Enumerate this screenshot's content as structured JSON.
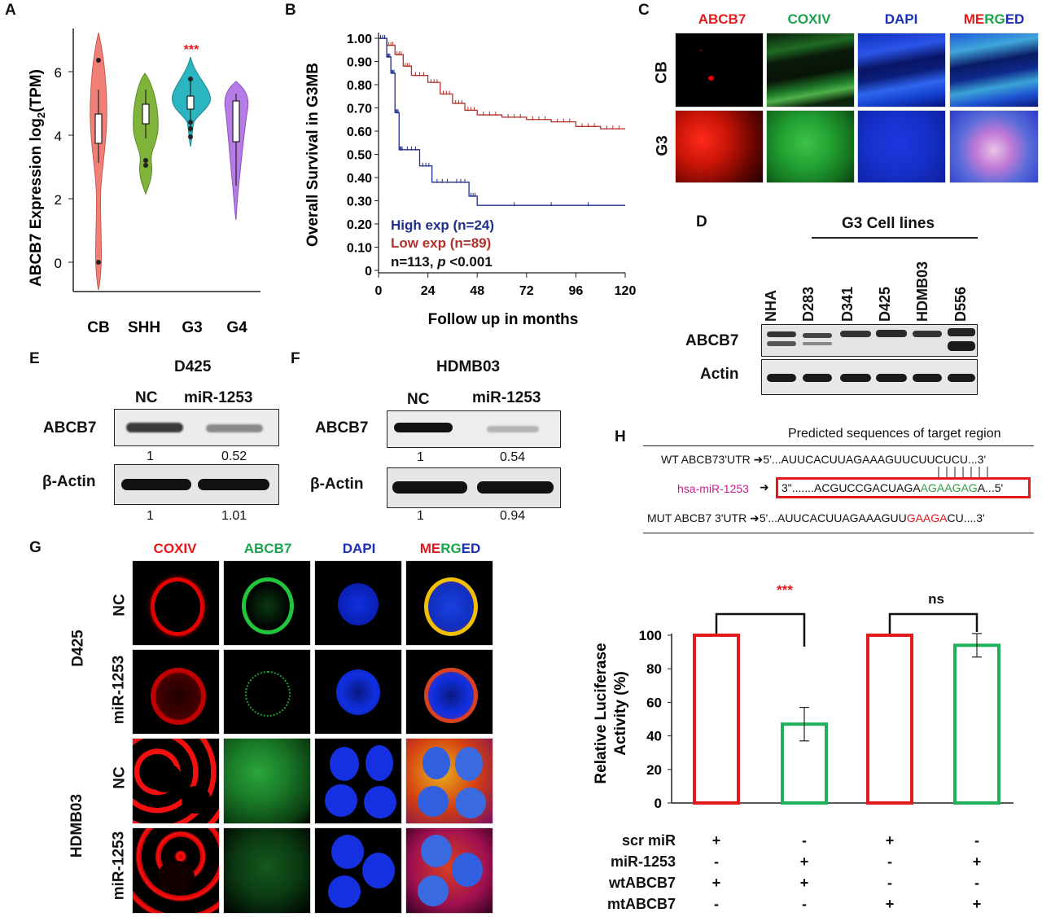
{
  "panels": [
    "A",
    "B",
    "C",
    "D",
    "E",
    "F",
    "G",
    "H"
  ],
  "panel_a": {
    "ylabel": "ABCB7 Expression log",
    "ylabel_sub": "2",
    "ylabel_end": "(TPM)",
    "yticks": [
      "0",
      "2",
      "4",
      "6"
    ],
    "groups": [
      "CB",
      "SHH",
      "G3",
      "G4"
    ],
    "colors": {
      "CB": "#f08077",
      "SHH": "#7fb33a",
      "G3": "#2bb5c0",
      "G4": "#b77be6"
    },
    "sig": "***"
  },
  "panel_b": {
    "ylabel": "Overall Survival in G3MB",
    "xlabel": "Follow up in months",
    "yticks": [
      "0",
      "0.10",
      "0.20",
      "0.30",
      "0.40",
      "0.50",
      "0.60",
      "0.70",
      "0.80",
      "0.90",
      "1.00"
    ],
    "xticks": [
      "0",
      "24",
      "48",
      "72",
      "96",
      "120"
    ],
    "legend_high": "High exp (n=24)",
    "legend_low": "Low exp (n=89)",
    "stat_n": "n=113, ",
    "stat_p": "p",
    "stat_rest": " <0.001",
    "high_color": "#1f2f8c",
    "low_color": "#b4302a"
  },
  "chart_data": [
    {
      "type": "line",
      "title": "Overall Survival in G3MB",
      "xlabel": "Follow up in months",
      "ylabel": "Overall Survival in G3MB",
      "xlim": [
        0,
        120
      ],
      "ylim": [
        0,
        1
      ],
      "series": [
        {
          "name": "High exp (n=24)",
          "x": [
            0,
            4,
            6,
            8,
            10,
            12,
            20,
            26,
            36,
            44,
            48,
            120
          ],
          "y": [
            1.0,
            0.92,
            0.85,
            0.68,
            0.52,
            0.52,
            0.45,
            0.38,
            0.38,
            0.32,
            0.28,
            0.28
          ]
        },
        {
          "name": "Low exp (n=89)",
          "x": [
            0,
            4,
            8,
            12,
            16,
            24,
            30,
            36,
            42,
            48,
            60,
            72,
            84,
            96,
            108,
            120
          ],
          "y": [
            1.0,
            0.97,
            0.93,
            0.88,
            0.84,
            0.81,
            0.76,
            0.72,
            0.69,
            0.67,
            0.66,
            0.65,
            0.64,
            0.62,
            0.61,
            0.61
          ]
        }
      ]
    },
    {
      "type": "bar",
      "title": "",
      "xlabel": "",
      "ylabel": "Relative Luciferase Activity (%)",
      "ylim": [
        0,
        100
      ],
      "categories": [
        "scr miR + wtABCB7",
        "miR-1253 + wtABCB7",
        "scr miR + mtABCB7",
        "miR-1253 + mtABCB7"
      ],
      "values": [
        100,
        47,
        100,
        94
      ],
      "errors": [
        0,
        10,
        0,
        7
      ],
      "colors": [
        "#e31a1c",
        "#1fb25a",
        "#e31a1c",
        "#1fb25a"
      ],
      "annotations": [
        "***",
        "ns"
      ]
    }
  ],
  "panel_c": {
    "cols": [
      "ABCB7",
      "COXIV",
      "DAPI"
    ],
    "merged_letters": [
      "ME",
      "RG",
      "ED"
    ],
    "rows": [
      "CB",
      "G3"
    ]
  },
  "panel_d": {
    "title": "G3 Cell lines",
    "lanes": [
      "NHA",
      "D283",
      "D341",
      "D425",
      "HDMB03",
      "D556"
    ],
    "rows": [
      "ABCB7",
      "Actin"
    ]
  },
  "panel_e": {
    "title": "D425",
    "lanes": [
      "NC",
      "miR-1253"
    ],
    "row1": "ABCB7",
    "row2": "β-Actin",
    "values1": [
      "1",
      "0.52"
    ],
    "values2": [
      "1",
      "1.01"
    ]
  },
  "panel_f": {
    "title": "HDMB03",
    "lanes": [
      "NC",
      "miR-1253"
    ],
    "row1": "ABCB7",
    "row2": "β-Actin",
    "values1": [
      "1",
      "0.54"
    ],
    "values2": [
      "1",
      "0.94"
    ]
  },
  "panel_g": {
    "cols": [
      "COXIV",
      "ABCB7",
      "DAPI"
    ],
    "merged_letters": [
      "ME",
      "RG",
      "ED"
    ],
    "row_labels": [
      "NC",
      "miR-1253",
      "NC",
      "miR-1253"
    ],
    "groups": [
      "D425",
      "HDMB03"
    ]
  },
  "panel_h": {
    "title": "Predicted sequences of target region",
    "wt_label": "WT ABCB73'UTR",
    "wt_seq": "5'...AUUCACUUAGAAAGUUCUUCUCU...3'",
    "mir_label": "hsa-miR-1253",
    "mir_seq_a": "3\".......ACGUCCGACUAGA",
    "mir_seq_b": "AGAAGAG",
    "mir_seq_c": "A...5'",
    "mut_label": "MUT ABCB7 3'UTR",
    "mut_seq_a": "5'...AUUCACUUAGAAAGUU",
    "mut_seq_b": "GAAGA",
    "mut_seq_c": "CU....3'"
  },
  "panel_bar": {
    "ylabel1": "Relative Luciferase",
    "ylabel2": "Activity (%)",
    "yticks": [
      "0",
      "20",
      "40",
      "60",
      "80",
      "100"
    ],
    "sig1": "***",
    "sig2": "ns",
    "conditions": [
      "scr miR",
      "miR-1253",
      "wtABCB7",
      "mtABCB7"
    ],
    "table": [
      [
        "+",
        "-",
        "+",
        "-"
      ],
      [
        "-",
        "+",
        "-",
        "+"
      ],
      [
        "+",
        "+",
        "-",
        "-"
      ],
      [
        "-",
        "-",
        "+",
        "+"
      ]
    ]
  }
}
